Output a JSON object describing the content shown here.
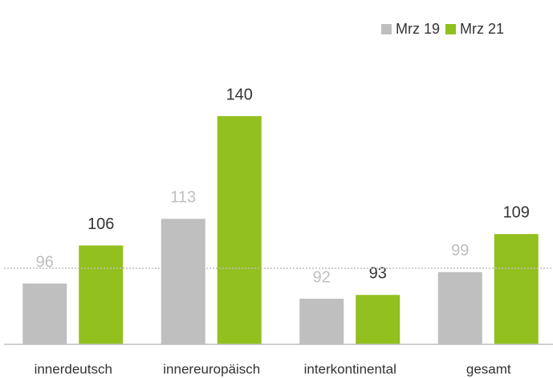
{
  "chart_data": {
    "type": "bar",
    "categories": [
      "innerdeutsch",
      "innereuropäisch",
      "interkontinental",
      "gesamt"
    ],
    "series": [
      {
        "name": "Mrz 19",
        "color": "#bfbfbf",
        "label_color": "#bfbfbf",
        "values": [
          96,
          113,
          92,
          99
        ]
      },
      {
        "name": "Mrz 21",
        "color": "#92c01f",
        "label_color": "#333333",
        "values": [
          106,
          140,
          93,
          109
        ]
      }
    ],
    "ylim": [
      80,
      160
    ],
    "reference_line": 100,
    "legend": "top-right"
  }
}
